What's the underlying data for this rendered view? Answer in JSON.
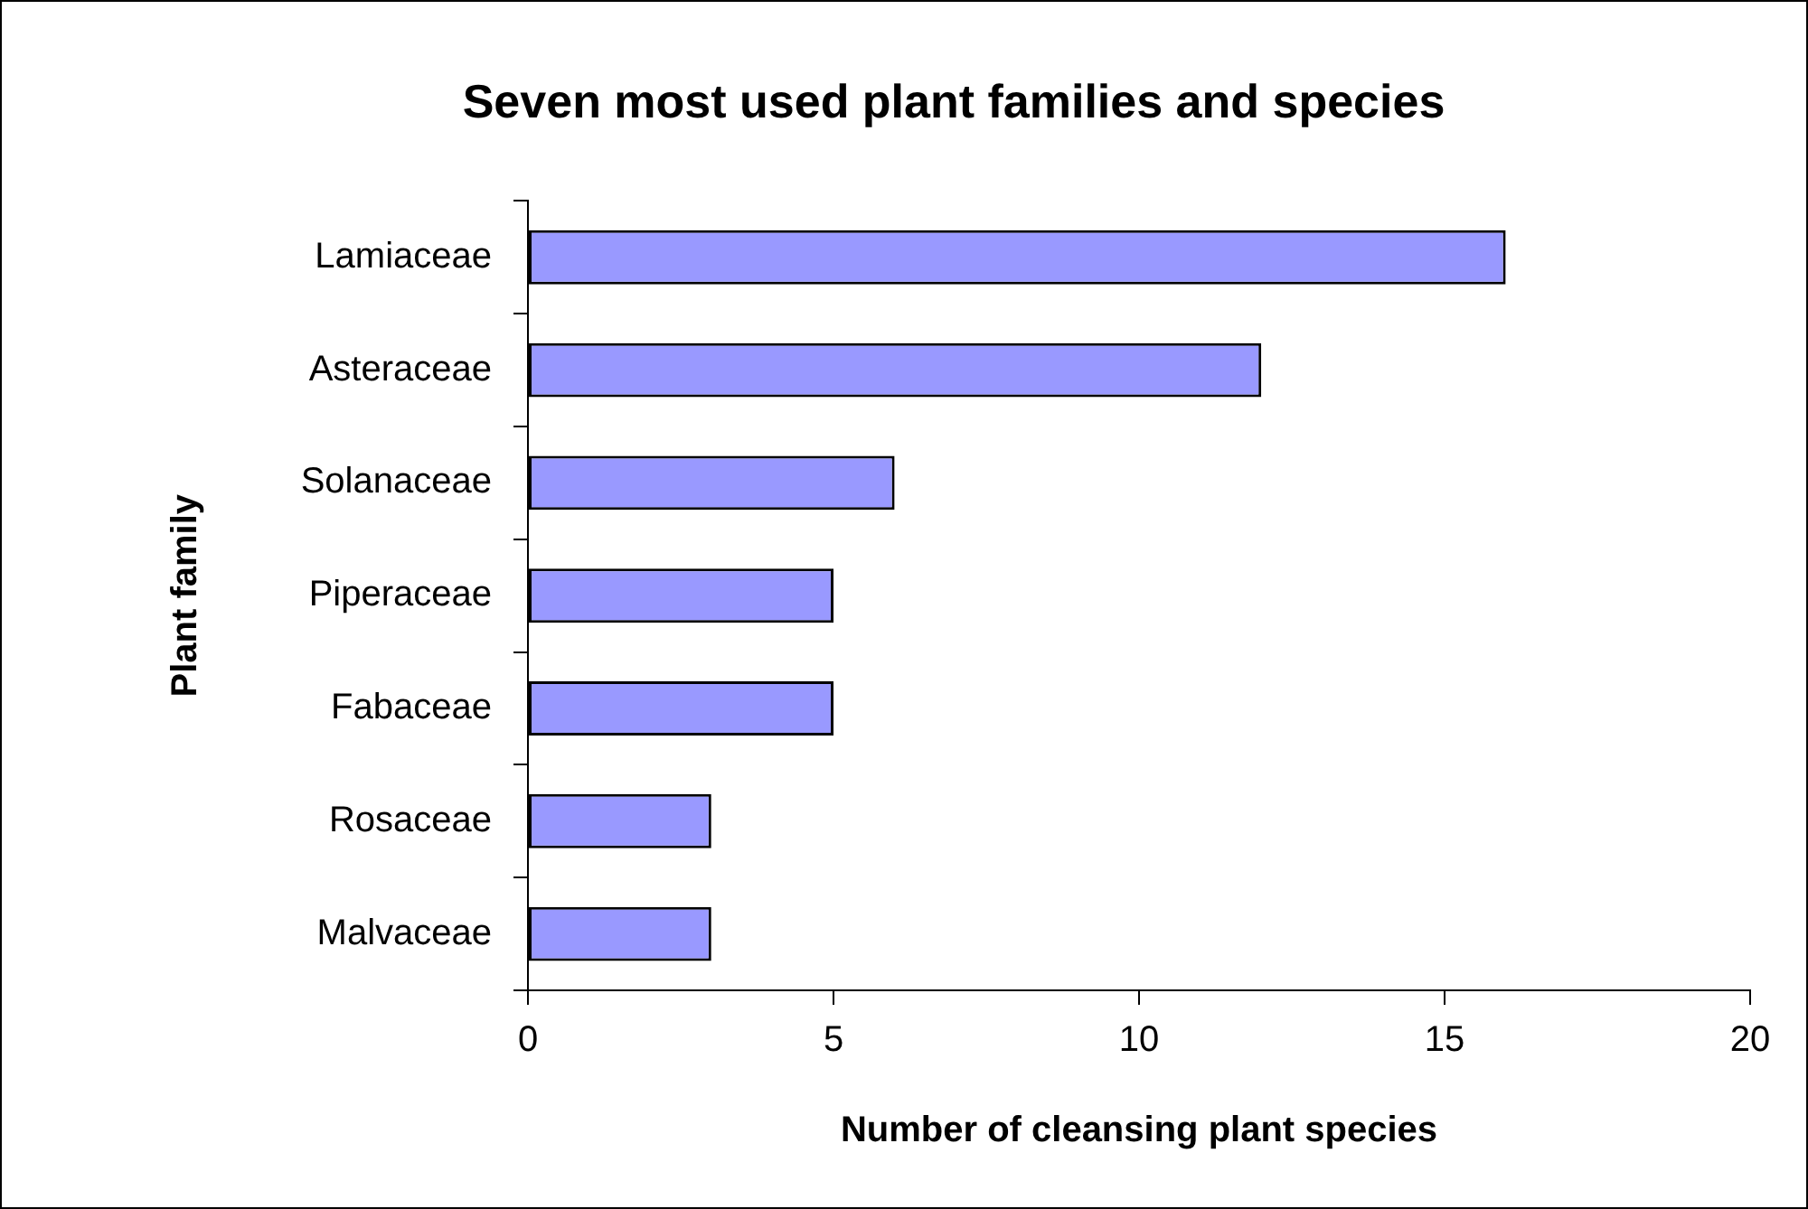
{
  "chart_data": {
    "type": "bar",
    "orientation": "horizontal",
    "title": "Seven most used plant families and species",
    "xlabel": "Number of cleansing plant species",
    "ylabel": "Plant family",
    "categories": [
      "Lamiaceae",
      "Asteraceae",
      "Solanaceae",
      "Piperaceae",
      "Fabaceae",
      "Rosaceae",
      "Malvaceae"
    ],
    "values": [
      16,
      12,
      6,
      5,
      5,
      3,
      3
    ],
    "color": "#9999ff",
    "xlim": [
      0,
      20
    ],
    "xticks": [
      0,
      5,
      10,
      15,
      20
    ],
    "legend": false
  }
}
